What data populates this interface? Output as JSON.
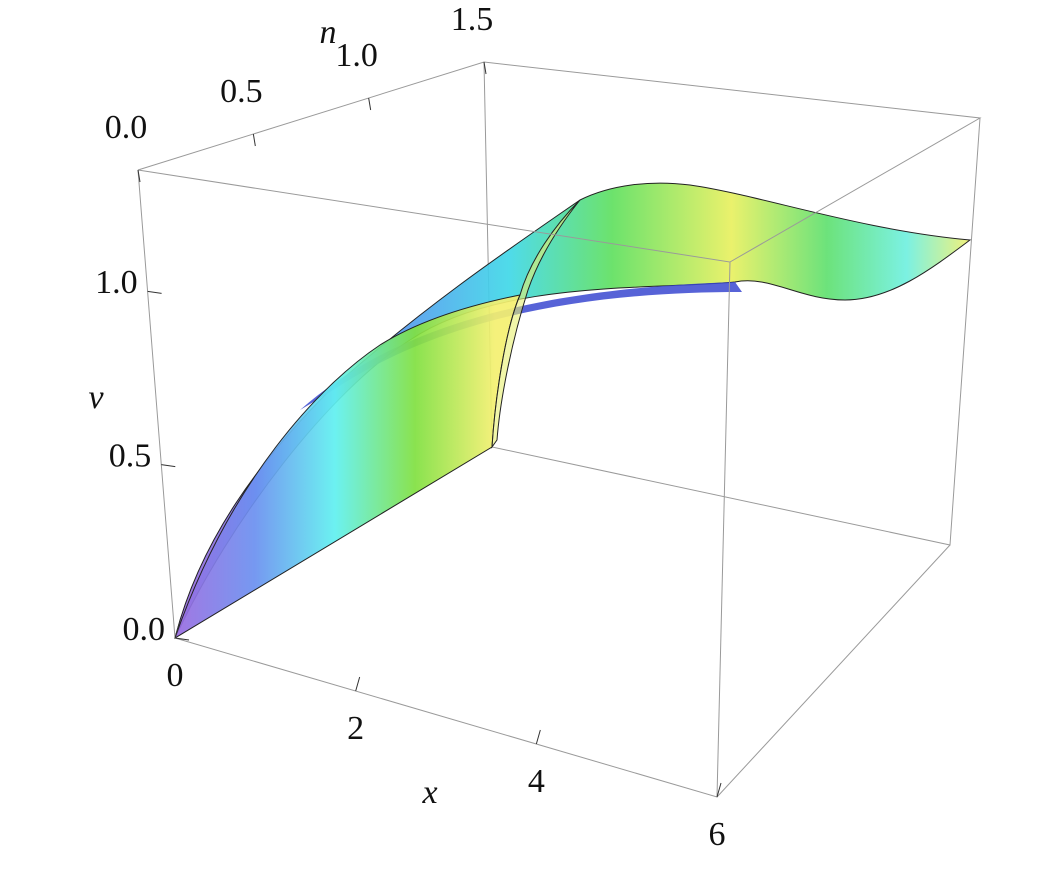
{
  "chart_data": {
    "type": "surface3d",
    "x_label": "x",
    "y_label": "n",
    "z_label": "v",
    "xlim": [
      0,
      6
    ],
    "xticks": [
      0,
      2,
      4,
      6
    ],
    "ylim": [
      0,
      1.5
    ],
    "yticks": [
      {
        "value": 0,
        "label": "0.0"
      },
      {
        "value": 0.5,
        "label": "0.5"
      },
      {
        "value": 1,
        "label": "1.0"
      },
      {
        "value": 1.5,
        "label": "1.5"
      }
    ],
    "zlim": [
      0,
      1.35
    ],
    "zticks": [
      {
        "value": 0,
        "label": "0.0"
      },
      {
        "value": 0.5,
        "label": "0.5"
      },
      {
        "value": 1,
        "label": "1.0"
      }
    ]
  }
}
